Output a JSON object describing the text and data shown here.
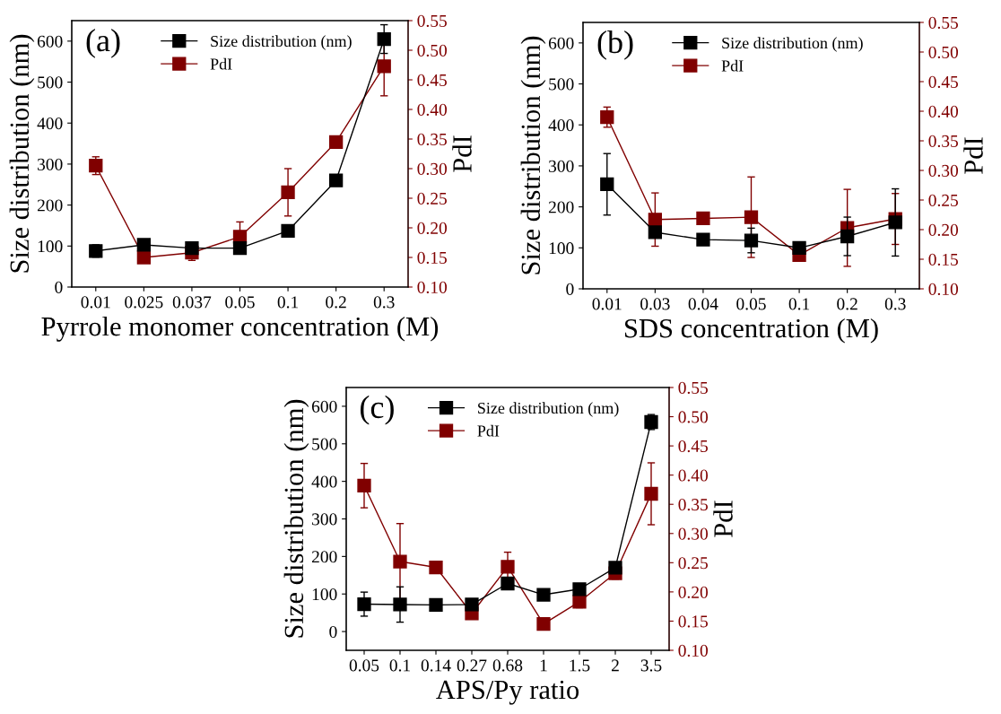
{
  "chart_data": [
    {
      "type": "line",
      "xlabel": "Pyrrole monomer concentration (M)",
      "ylabel": "Size distribution (nm)",
      "y2label": "PdI",
      "annotations": [
        "(a)"
      ],
      "legend": "top",
      "marker": "square",
      "line_style": "solid",
      "categories": [
        "0.01",
        "0.025",
        "0.037",
        "0.05",
        "0.1",
        "0.2",
        "0.3"
      ],
      "series": [
        {
          "name": "Size distribution (nm)",
          "color": "#000000",
          "values": [
            88,
            103,
            95,
            95,
            137,
            260,
            605
          ],
          "errors": [
            15,
            null,
            null,
            null,
            null,
            null,
            35
          ]
        },
        {
          "name": "PdI",
          "color": "#800000",
          "axis": "y2",
          "values": [
            0.305,
            0.15,
            0.158,
            0.185,
            0.26,
            0.345,
            0.473
          ],
          "errors": [
            0.015,
            null,
            0.013,
            0.025,
            0.04,
            null,
            0.05
          ]
        }
      ],
      "ylim": [
        0,
        650
      ],
      "yticks": [
        0,
        100,
        200,
        300,
        400,
        500,
        600
      ],
      "y2lim": [
        0.1,
        0.55
      ],
      "y2ticks": [
        {
          "value": 0.1,
          "label": "0.10"
        },
        {
          "value": 0.15,
          "label": "0.15"
        },
        {
          "value": 0.2,
          "label": "0.20"
        },
        {
          "value": 0.25,
          "label": "0.25"
        },
        {
          "value": 0.3,
          "label": "0.30"
        },
        {
          "value": 0.35,
          "label": "0.35"
        },
        {
          "value": 0.4,
          "label": "0.40"
        },
        {
          "value": 0.45,
          "label": "0.45"
        },
        {
          "value": 0.5,
          "label": "0.50"
        },
        {
          "value": 0.55,
          "label": "0.55"
        }
      ]
    },
    {
      "type": "line",
      "xlabel": "SDS concentration (M)",
      "ylabel": "Size distribution (nm)",
      "y2label": "PdI",
      "annotations": [
        "(b)"
      ],
      "legend": "top",
      "marker": "square",
      "line_style": "solid",
      "categories": [
        "0.01",
        "0.03",
        "0.04",
        "0.05",
        "0.1",
        "0.2",
        "0.3"
      ],
      "series": [
        {
          "name": "Size distribution (nm)",
          "color": "#000000",
          "values": [
            255,
            138,
            120,
            118,
            100,
            128,
            162
          ],
          "errors": [
            75,
            null,
            null,
            30,
            null,
            47,
            82
          ]
        },
        {
          "name": "PdI",
          "color": "#800000",
          "axis": "y2",
          "values": [
            0.39,
            0.217,
            0.219,
            0.221,
            0.157,
            0.203,
            0.218
          ],
          "errors": [
            0.017,
            0.045,
            null,
            0.068,
            null,
            0.065,
            0.043
          ]
        }
      ],
      "ylim": [
        0,
        650
      ],
      "yticks": [
        0,
        100,
        200,
        300,
        400,
        500,
        600
      ],
      "y2lim": [
        0.1,
        0.55
      ],
      "y2ticks": [
        {
          "value": 0.1,
          "label": "0.10"
        },
        {
          "value": 0.15,
          "label": "0.15"
        },
        {
          "value": 0.2,
          "label": "0.20"
        },
        {
          "value": 0.25,
          "label": "0.25"
        },
        {
          "value": 0.3,
          "label": "0.30"
        },
        {
          "value": 0.35,
          "label": "0.35"
        },
        {
          "value": 0.4,
          "label": "0.40"
        },
        {
          "value": 0.45,
          "label": "0.45"
        },
        {
          "value": 0.5,
          "label": "0.50"
        },
        {
          "value": 0.55,
          "label": "0.55"
        }
      ]
    },
    {
      "type": "line",
      "xlabel": "APS/Py ratio",
      "ylabel": "Size distribution (nm)",
      "y2label": "PdI",
      "annotations": [
        "(c)"
      ],
      "legend": "top",
      "marker": "square",
      "line_style": "solid",
      "categories": [
        "0.05",
        "0.1",
        "0.14",
        "0.27",
        "0.68",
        "1",
        "1.5",
        "2",
        "3.5"
      ],
      "series": [
        {
          "name": "Size distribution (nm)",
          "color": "#000000",
          "values": [
            73,
            72,
            71,
            72,
            128,
            98,
            113,
            170,
            558
          ],
          "errors": [
            32,
            47,
            null,
            null,
            null,
            null,
            null,
            null,
            20
          ]
        },
        {
          "name": "PdI",
          "color": "#800000",
          "axis": "y2",
          "values": [
            0.382,
            0.252,
            0.242,
            0.163,
            0.243,
            0.145,
            0.183,
            0.232,
            0.368
          ],
          "errors": [
            0.038,
            0.065,
            null,
            null,
            0.025,
            null,
            0.01,
            0.01,
            0.053
          ]
        }
      ],
      "ylim": [
        -50,
        650
      ],
      "yticks": [
        0,
        100,
        200,
        300,
        400,
        500,
        600
      ],
      "y2lim": [
        0.1,
        0.55
      ],
      "y2ticks": [
        {
          "value": 0.1,
          "label": "0.10"
        },
        {
          "value": 0.15,
          "label": "0.15"
        },
        {
          "value": 0.2,
          "label": "0.20"
        },
        {
          "value": 0.25,
          "label": "0.25"
        },
        {
          "value": 0.3,
          "label": "0.30"
        },
        {
          "value": 0.35,
          "label": "0.35"
        },
        {
          "value": 0.4,
          "label": "0.40"
        },
        {
          "value": 0.45,
          "label": "0.45"
        },
        {
          "value": 0.5,
          "label": "0.50"
        },
        {
          "value": 0.55,
          "label": "0.55"
        }
      ]
    }
  ]
}
